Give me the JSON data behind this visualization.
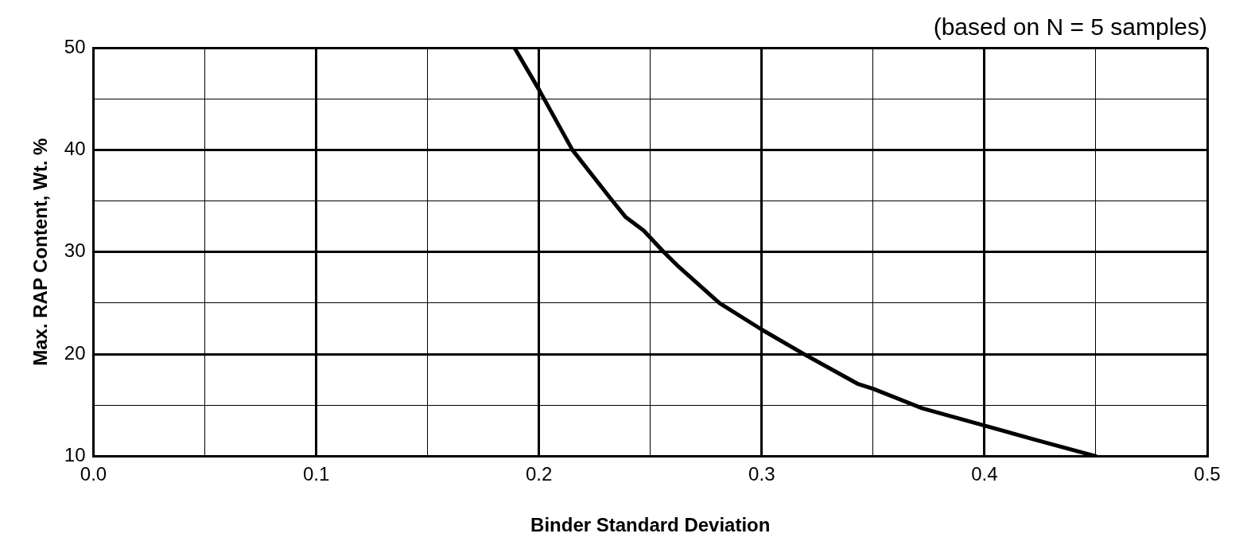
{
  "chart_data": {
    "type": "line",
    "subtitle": "(based on N = 5 samples)",
    "xlabel": "Binder Standard Deviation",
    "ylabel": "Max. RAP Content, Wt. %",
    "x": [
      0.189,
      0.2,
      0.215,
      0.233,
      0.239,
      0.247,
      0.256,
      0.263,
      0.281,
      0.3,
      0.319,
      0.343,
      0.35,
      0.372,
      0.4,
      0.423,
      0.45
    ],
    "series": [
      {
        "color": "#000000",
        "values": [
          50,
          45.9,
          40,
          35,
          33.4,
          32.1,
          30,
          28.5,
          25,
          22.4,
          20,
          17.1,
          16.6,
          14.7,
          13,
          11.6,
          10
        ]
      }
    ],
    "xlim": [
      0,
      0.5
    ],
    "ylim": [
      10,
      50
    ],
    "xticks": [
      {
        "value": 0,
        "label": "0.0"
      },
      {
        "value": 0.05,
        "label": null
      },
      0.1,
      {
        "value": 0.15,
        "label": null
      },
      0.2,
      {
        "value": 0.25,
        "label": null
      },
      0.3,
      {
        "value": 0.35,
        "label": null
      },
      0.4,
      {
        "value": 0.45,
        "label": null
      },
      0.5
    ],
    "yticks": [
      10,
      {
        "value": 15,
        "label": null
      },
      20,
      {
        "value": 25,
        "label": null
      },
      30,
      {
        "value": 35,
        "label": null
      },
      40,
      {
        "value": 45,
        "label": null
      },
      50
    ],
    "grid": true,
    "legend": false,
    "marker": "none",
    "line_style": "solid"
  }
}
